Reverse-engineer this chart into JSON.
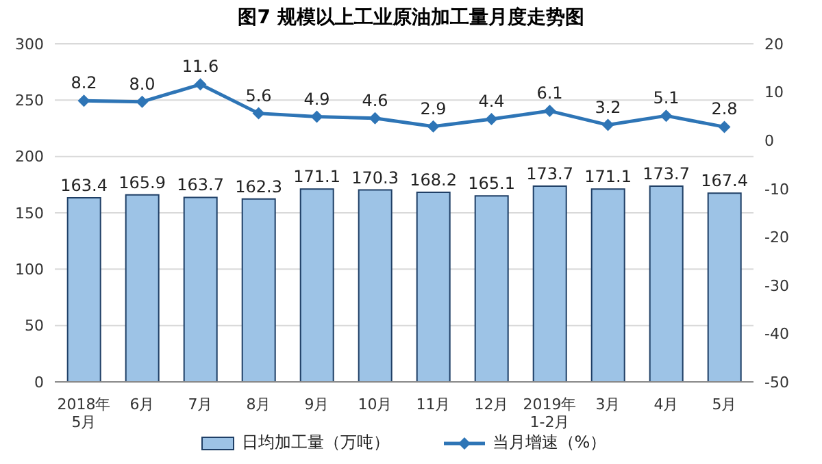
{
  "chart_data": {
    "type": "bar",
    "title": "图7  规模以上工业原油加工量月度走势图",
    "categories": [
      "2018年\n5月",
      "6月",
      "7月",
      "8月",
      "9月",
      "10月",
      "11月",
      "12月",
      "2019年\n1-2月",
      "3月",
      "4月",
      "5月"
    ],
    "series": [
      {
        "name": "日均加工量（万吨）",
        "color": "#9dc3e6",
        "values": [
          163.4,
          165.9,
          163.7,
          162.3,
          171.1,
          170.3,
          168.2,
          165.1,
          173.7,
          171.1,
          173.7,
          167.4
        ]
      },
      {
        "name": "当月增速（%）",
        "type": "line",
        "axis": "y2",
        "color": "#2e75b6",
        "values": [
          8.2,
          8.0,
          11.6,
          5.6,
          4.9,
          4.6,
          2.9,
          4.4,
          6.1,
          3.2,
          5.1,
          2.8
        ],
        "value_labels": [
          "8.2",
          "8.0",
          "11.6",
          "5.6",
          "4.9",
          "4.6",
          "2.9",
          "4.4",
          "6.1",
          "3.2",
          "5.1",
          "2.8"
        ]
      }
    ],
    "ylim": [
      0,
      300
    ],
    "yticks": [
      0,
      50,
      100,
      150,
      200,
      250,
      300
    ],
    "y2lim": [
      -50,
      20
    ],
    "y2ticks": [
      -50,
      -40,
      -30,
      -20,
      -10,
      0,
      10,
      20
    ],
    "grid": "y",
    "legend": "bottom",
    "marker": "diamond",
    "data_labels": true
  }
}
